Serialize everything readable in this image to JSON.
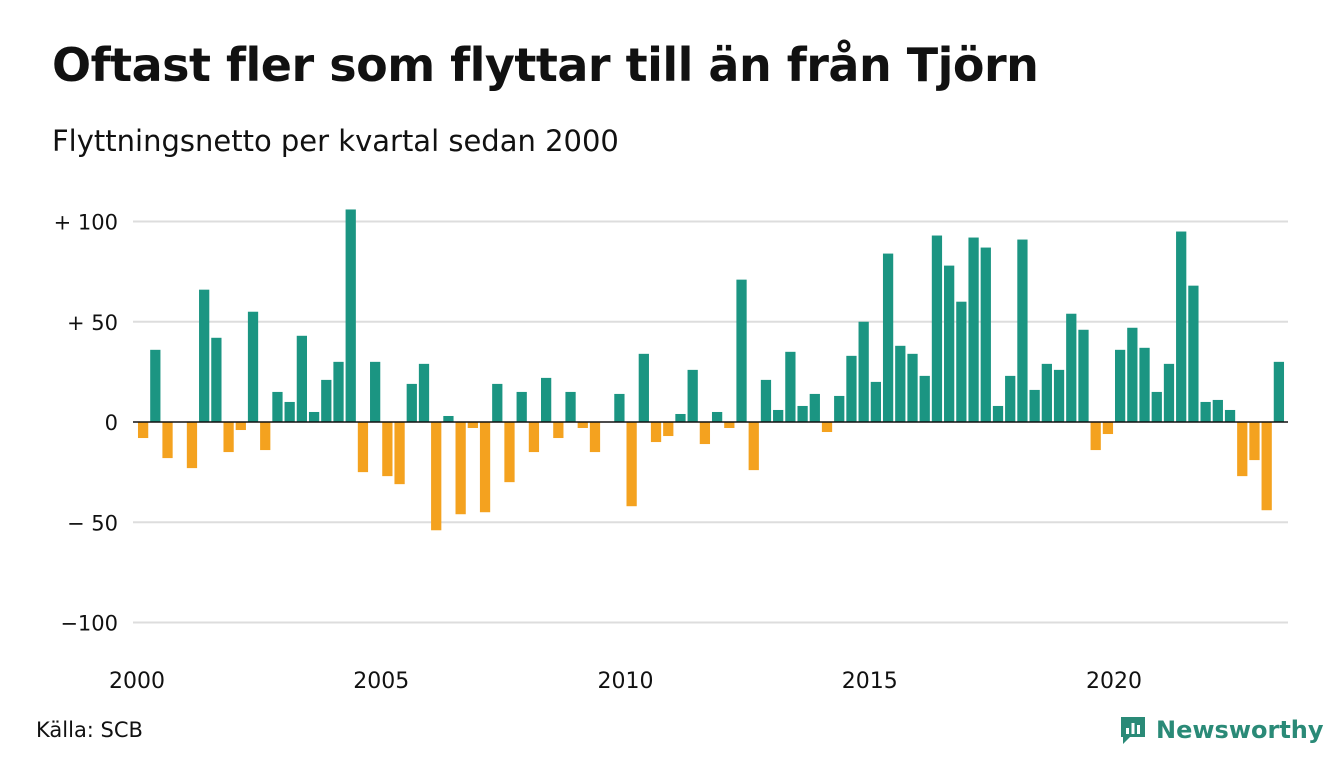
{
  "chart_data": {
    "type": "bar",
    "title": "Oftast fler som flyttar till än från Tjörn",
    "subtitle": "Flyttningsnetto per kvartal sedan 2000",
    "source": "Källa: SCB",
    "brand": "Newsworthy",
    "start_year": 2000,
    "x_tick_labels": [
      "2000",
      "2005",
      "2010",
      "2015",
      "2020"
    ],
    "y_tick_labels": [
      {
        "value": 100,
        "label": "+ 100"
      },
      {
        "value": 50,
        "label": "+  50"
      },
      {
        "value": 0,
        "label": "0"
      },
      {
        "value": -50,
        "label": "− 50"
      },
      {
        "value": -100,
        "label": "−100"
      }
    ],
    "ylim": [
      -110,
      110
    ],
    "grid": true,
    "colors": {
      "positive": "#1b9582",
      "negative": "#f4a21f",
      "grid": "#dddddd",
      "axis": "#111111"
    },
    "values": [
      -8,
      36,
      -18,
      0,
      -23,
      66,
      42,
      -15,
      -4,
      55,
      -14,
      15,
      10,
      43,
      5,
      21,
      30,
      106,
      -25,
      30,
      -27,
      -31,
      19,
      29,
      -54,
      3,
      -46,
      -3,
      -45,
      19,
      -30,
      15,
      -15,
      22,
      -8,
      15,
      -3,
      -15,
      0,
      14,
      -42,
      34,
      -10,
      -7,
      4,
      26,
      -11,
      5,
      -3,
      71,
      -24,
      21,
      6,
      35,
      8,
      14,
      -5,
      13,
      33,
      50,
      20,
      84,
      38,
      34,
      23,
      93,
      78,
      60,
      92,
      87,
      8,
      23,
      91,
      16,
      29,
      26,
      54,
      46,
      -14,
      -6,
      36,
      47,
      37,
      15,
      29,
      95,
      68,
      10,
      11,
      6,
      -27,
      -19,
      -44,
      30
    ]
  }
}
